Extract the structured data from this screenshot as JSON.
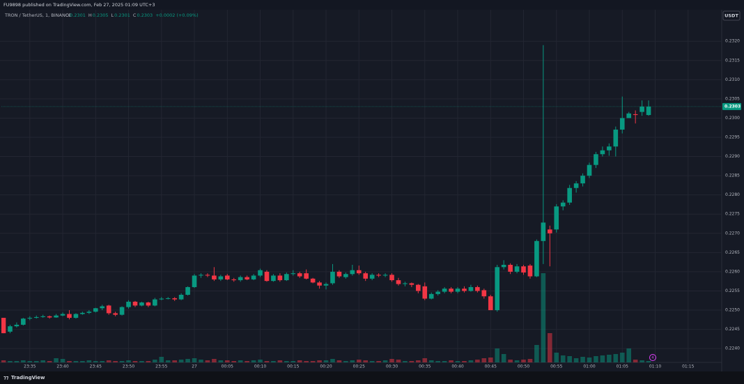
{
  "header": {
    "published": "FU9898 published on TradingView.com, Feb 27, 2025 01:09 UTC+3",
    "symbol": "TRON / TetherUS, 1, BINANCE",
    "ohlc": [
      {
        "label": "O",
        "value": 0.2301
      },
      {
        "label": "H",
        "value": 0.2305
      },
      {
        "label": "L",
        "value": 0.2301
      },
      {
        "label": "C",
        "value": 0.2303
      }
    ],
    "change": "+0.0002 (+0.09%)",
    "currency": "USDT",
    "event": "4",
    "brand": "TradingView"
  },
  "chart_data": {
    "type": "candlestick",
    "up_color": "#089981",
    "down_color": "#f23645",
    "grid": true,
    "last_price": 0.2303,
    "xlim": [
      "23:31",
      "01:20"
    ],
    "xticks": [
      {
        "value": "23:35",
        "label": "23:35"
      },
      {
        "value": "23:40",
        "label": "23:40"
      },
      {
        "value": "23:45",
        "label": "23:45"
      },
      {
        "value": "23:50",
        "label": "23:50"
      },
      {
        "value": "23:55",
        "label": "23:55"
      },
      {
        "value": "00:00",
        "label": "27"
      },
      {
        "value": "00:05",
        "label": "00:05"
      },
      {
        "value": "00:10",
        "label": "00:10"
      },
      {
        "value": "00:15",
        "label": "00:15"
      },
      {
        "value": "00:20",
        "label": "00:20"
      },
      {
        "value": "00:25",
        "label": "00:25"
      },
      {
        "value": "00:30",
        "label": "00:30"
      },
      {
        "value": "00:35",
        "label": "00:35"
      },
      {
        "value": "00:40",
        "label": "00:40"
      },
      {
        "value": "00:45",
        "label": "00:45"
      },
      {
        "value": "00:50",
        "label": "00:50"
      },
      {
        "value": "00:55",
        "label": "00:55"
      },
      {
        "value": "01:00",
        "label": "01:00"
      },
      {
        "value": "01:05",
        "label": "01:05"
      },
      {
        "value": "01:10",
        "label": "01:10"
      },
      {
        "value": "01:15",
        "label": "01:15"
      }
    ],
    "ylim": [
      0.22364,
      0.23282
    ],
    "yticks": [
      {
        "value": 0.224,
        "label": "0.2240"
      },
      0.2245,
      {
        "value": 0.225,
        "label": "0.2250"
      },
      0.2255,
      {
        "value": 0.226,
        "label": "0.2260"
      },
      0.2265,
      {
        "value": 0.227,
        "label": "0.2270"
      },
      0.2275,
      {
        "value": 0.228,
        "label": "0.2280"
      },
      0.2285,
      {
        "value": 0.229,
        "label": "0.2290"
      },
      0.2295,
      {
        "value": 0.23,
        "label": "0.2300"
      },
      0.2305,
      {
        "value": 0.231,
        "label": "0.2310"
      },
      0.2315,
      {
        "value": 0.232,
        "label": "0.2320"
      }
    ],
    "x": [
      "23:31",
      "23:32",
      "23:33",
      "23:34",
      "23:35",
      "23:36",
      "23:37",
      "23:38",
      "23:39",
      "23:40",
      "23:41",
      "23:42",
      "23:43",
      "23:44",
      "23:45",
      "23:46",
      "23:47",
      "23:48",
      "23:49",
      "23:50",
      "23:51",
      "23:52",
      "23:53",
      "23:54",
      "23:55",
      "23:56",
      "23:57",
      "23:58",
      "23:59",
      "00:00",
      "00:01",
      "00:02",
      "00:03",
      "00:04",
      "00:05",
      "00:06",
      "00:07",
      "00:08",
      "00:09",
      "00:10",
      "00:11",
      "00:12",
      "00:13",
      "00:14",
      "00:15",
      "00:16",
      "00:17",
      "00:18",
      "00:19",
      "00:20",
      "00:21",
      "00:22",
      "00:23",
      "00:24",
      "00:25",
      "00:26",
      "00:27",
      "00:28",
      "00:29",
      "00:30",
      "00:31",
      "00:32",
      "00:33",
      "00:34",
      "00:35",
      "00:36",
      "00:37",
      "00:38",
      "00:39",
      "00:40",
      "00:41",
      "00:42",
      "00:43",
      "00:44",
      "00:45",
      "00:46",
      "00:47",
      "00:48",
      "00:49",
      "00:50",
      "00:51",
      "00:52",
      "00:53",
      "00:54",
      "00:55",
      "00:56",
      "00:57",
      "00:58",
      "00:59",
      "01:00",
      "01:01",
      "01:02",
      "01:03",
      "01:04",
      "01:05",
      "01:06",
      "01:07",
      "01:08",
      "01:09"
    ],
    "open": [
      0.2248,
      0.22444,
      0.22458,
      0.22462,
      0.22478,
      0.2248,
      0.22482,
      0.22484,
      0.22481,
      0.22486,
      0.2249,
      0.2248,
      0.2249,
      0.22493,
      0.22496,
      0.22505,
      0.22512,
      0.22492,
      0.22488,
      0.22508,
      0.22522,
      0.22512,
      0.2252,
      0.22512,
      0.22528,
      0.2253,
      0.22531,
      0.22528,
      0.2254,
      0.2256,
      0.2259,
      0.22592,
      0.2259,
      0.2258,
      0.2259,
      0.2258,
      0.22578,
      0.22586,
      0.2258,
      0.2259,
      0.226,
      0.22576,
      0.2259,
      0.22578,
      0.22594,
      0.22596,
      0.22596,
      0.22582,
      0.22572,
      0.22564,
      0.2257,
      0.226,
      0.22586,
      0.22594,
      0.22604,
      0.22596,
      0.22582,
      0.22592,
      0.2259,
      0.22592,
      0.22578,
      0.22568,
      0.2257,
      0.22566,
      0.22562,
      0.2253,
      0.22542,
      0.22548,
      0.22556,
      0.22548,
      0.22556,
      0.2255,
      0.2256,
      0.22552,
      0.22536,
      0.225,
      0.22612,
      0.22618,
      0.226,
      0.22614,
      0.22616,
      0.22588,
      0.2268,
      0.2271,
      0.2271,
      0.2277,
      0.2278,
      0.22818,
      0.2283,
      0.2285,
      0.22878,
      0.22906,
      0.22916,
      0.22926,
      0.2297,
      0.23,
      0.2301,
      0.23016,
      0.23008
    ],
    "high": [
      0.2248,
      0.22462,
      0.22468,
      0.2248,
      0.22484,
      0.22486,
      0.22488,
      0.22486,
      0.2249,
      0.22494,
      0.225,
      0.22492,
      0.22496,
      0.225,
      0.22506,
      0.22514,
      0.22514,
      0.22496,
      0.2251,
      0.22526,
      0.22524,
      0.22522,
      0.22522,
      0.22532,
      0.22534,
      0.22534,
      0.22534,
      0.22544,
      0.22562,
      0.22594,
      0.22596,
      0.22596,
      0.22612,
      0.22592,
      0.22594,
      0.22584,
      0.2259,
      0.2259,
      0.22594,
      0.22608,
      0.22604,
      0.22594,
      0.22596,
      0.22598,
      0.22604,
      0.226,
      0.22606,
      0.22584,
      0.22576,
      0.22572,
      0.2262,
      0.22604,
      0.22598,
      0.22618,
      0.22616,
      0.226,
      0.22596,
      0.22596,
      0.22596,
      0.22596,
      0.22584,
      0.22574,
      0.22572,
      0.22568,
      0.22572,
      0.22546,
      0.22552,
      0.2256,
      0.2256,
      0.2256,
      0.22562,
      0.22566,
      0.22564,
      0.22556,
      0.2254,
      0.22618,
      0.2263,
      0.22622,
      0.2262,
      0.22618,
      0.2262,
      0.22684,
      0.2319,
      0.2272,
      0.22776,
      0.22786,
      0.22826,
      0.22836,
      0.22856,
      0.22884,
      0.22912,
      0.22926,
      0.22934,
      0.22978,
      0.23056,
      0.23016,
      0.2302,
      0.23046,
      0.23046
    ],
    "low": [
      0.2244,
      0.2244,
      0.22455,
      0.2246,
      0.22474,
      0.22478,
      0.2248,
      0.22478,
      0.2248,
      0.22484,
      0.22476,
      0.22478,
      0.22488,
      0.2249,
      0.22494,
      0.225,
      0.22488,
      0.22484,
      0.22486,
      0.22504,
      0.22508,
      0.2251,
      0.22508,
      0.2251,
      0.22526,
      0.22528,
      0.22524,
      0.22526,
      0.22538,
      0.22558,
      0.22584,
      0.22586,
      0.22576,
      0.22576,
      0.22578,
      0.22574,
      0.22574,
      0.22578,
      0.22578,
      0.22586,
      0.22574,
      0.22574,
      0.22574,
      0.22576,
      0.2259,
      0.22584,
      0.2258,
      0.2257,
      0.22556,
      0.22554,
      0.22566,
      0.22584,
      0.22582,
      0.2259,
      0.22592,
      0.22576,
      0.22578,
      0.22586,
      0.22586,
      0.22574,
      0.22564,
      0.22562,
      0.2256,
      0.22544,
      0.22526,
      0.22528,
      0.22538,
      0.22544,
      0.22544,
      0.22544,
      0.22546,
      0.22548,
      0.22546,
      0.2253,
      0.225,
      0.22496,
      0.22606,
      0.22594,
      0.22596,
      0.22592,
      0.22582,
      0.22586,
      0.2262,
      0.22614,
      0.22702,
      0.2276,
      0.22774,
      0.22806,
      0.22822,
      0.22844,
      0.2287,
      0.229,
      0.22902,
      0.229,
      0.2296,
      0.23004,
      0.22986,
      0.23006,
      0.23006
    ],
    "close": [
      0.2244,
      0.22458,
      0.22462,
      0.22478,
      0.2248,
      0.22482,
      0.22484,
      0.22481,
      0.22486,
      0.2249,
      0.2248,
      0.2249,
      0.22493,
      0.22496,
      0.22505,
      0.2251,
      0.22492,
      0.22488,
      0.22508,
      0.22522,
      0.22512,
      0.2252,
      0.22512,
      0.22528,
      0.2253,
      0.22531,
      0.22528,
      0.2254,
      0.2256,
      0.2259,
      0.22592,
      0.2259,
      0.2258,
      0.22588,
      0.2258,
      0.22578,
      0.22586,
      0.2258,
      0.2259,
      0.22604,
      0.22576,
      0.2259,
      0.22578,
      0.22594,
      0.22596,
      0.22588,
      0.22582,
      0.22572,
      0.22564,
      0.22568,
      0.226,
      0.22588,
      0.22594,
      0.22604,
      0.22596,
      0.22582,
      0.22592,
      0.2259,
      0.22592,
      0.22578,
      0.22568,
      0.2257,
      0.22566,
      0.2255,
      0.2253,
      0.22542,
      0.22548,
      0.22556,
      0.22548,
      0.22556,
      0.2255,
      0.2256,
      0.2255,
      0.22536,
      0.225,
      0.22612,
      0.22618,
      0.226,
      0.22614,
      0.22598,
      0.22588,
      0.2268,
      0.22728,
      0.227,
      0.2277,
      0.2278,
      0.22818,
      0.2283,
      0.2285,
      0.22878,
      0.22906,
      0.22916,
      0.22926,
      0.2297,
      0.23,
      0.23012,
      0.23008,
      0.2303,
      0.2303
    ],
    "volume": [
      3,
      2,
      2,
      3,
      2,
      2,
      3,
      2,
      6,
      5,
      2,
      2,
      2,
      3,
      2,
      2,
      3,
      2,
      2,
      3,
      2,
      2,
      2,
      4,
      8,
      3,
      3,
      4,
      5,
      6,
      4,
      3,
      5,
      3,
      3,
      2,
      3,
      2,
      3,
      4,
      2,
      2,
      3,
      2,
      2,
      3,
      2,
      2,
      3,
      3,
      5,
      3,
      2,
      3,
      4,
      3,
      2,
      2,
      3,
      5,
      4,
      2,
      2,
      3,
      6,
      3,
      2,
      2,
      3,
      2,
      2,
      3,
      4,
      6,
      7,
      20,
      12,
      4,
      3,
      4,
      5,
      25,
      128,
      42,
      14,
      10,
      9,
      6,
      8,
      7,
      9,
      10,
      11,
      12,
      14,
      20,
      4,
      3,
      2
    ]
  }
}
